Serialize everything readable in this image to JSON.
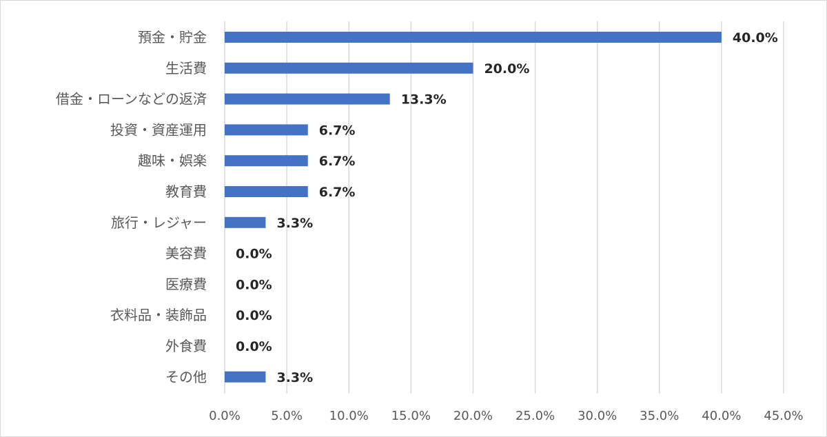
{
  "chart_data": {
    "type": "bar",
    "orientation": "horizontal",
    "categories": [
      "預金・貯金",
      "生活費",
      "借金・ローンなどの返済",
      "投資・資産運用",
      "趣味・娯楽",
      "教育費",
      "旅行・レジャー",
      "美容費",
      "医療費",
      "衣料品・装飾品",
      "外食費",
      "その他"
    ],
    "values": [
      40.0,
      20.0,
      13.3,
      6.7,
      6.7,
      6.7,
      3.3,
      0.0,
      0.0,
      0.0,
      0.0,
      3.3
    ],
    "value_labels": [
      "40.0%",
      "20.0%",
      "13.3%",
      "6.7%",
      "6.7%",
      "6.7%",
      "3.3%",
      "0.0%",
      "0.0%",
      "0.0%",
      "0.0%",
      "3.3%"
    ],
    "xlim": [
      0,
      45
    ],
    "x_ticks": [
      "0.0%",
      "5.0%",
      "10.0%",
      "15.0%",
      "20.0%",
      "25.0%",
      "30.0%",
      "35.0%",
      "40.0%",
      "45.0%"
    ],
    "grid": "vertical",
    "legend": "none",
    "bar_color": "#4472c4",
    "grid_color": "#d9d9d9"
  }
}
